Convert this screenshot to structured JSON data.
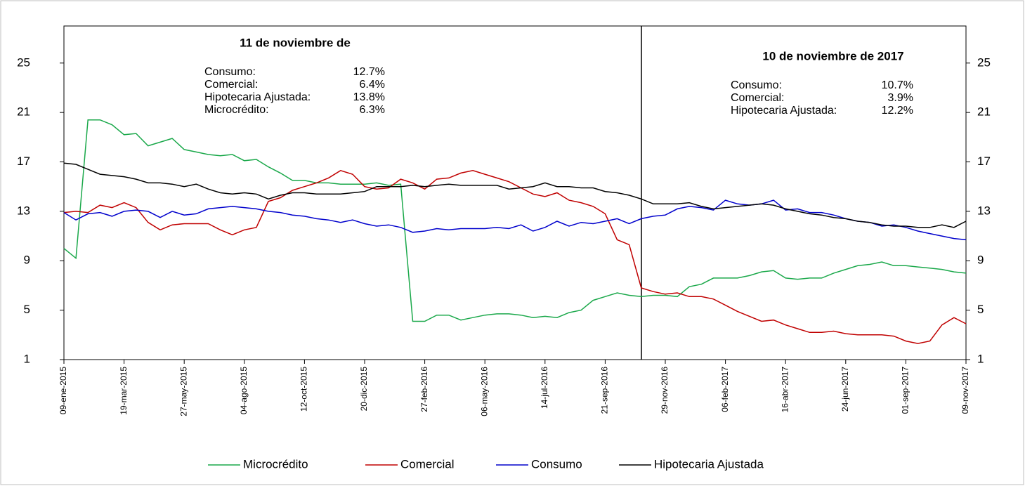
{
  "chart_data": {
    "type": "line",
    "categories": [
      "09-ene-2015",
      null,
      null,
      null,
      null,
      "19-mar-2015",
      null,
      null,
      null,
      null,
      "27-may-2015",
      null,
      null,
      null,
      null,
      "04-ago-2015",
      null,
      null,
      null,
      null,
      "12-oct-2015",
      null,
      null,
      null,
      null,
      "20-dic-2015",
      null,
      null,
      null,
      null,
      "27-feb-2016",
      null,
      null,
      null,
      null,
      "06-may-2016",
      null,
      null,
      null,
      null,
      "14-jul-2016",
      null,
      null,
      null,
      null,
      "21-sep-2016",
      null,
      null,
      null,
      null,
      "29-nov-2016",
      null,
      null,
      null,
      null,
      "06-feb-2017",
      null,
      null,
      null,
      null,
      "16-abr-2017",
      null,
      null,
      null,
      null,
      "24-jun-2017",
      null,
      null,
      null,
      null,
      "01-sep-2017",
      null,
      null,
      null,
      null,
      "09-nov-2017"
    ],
    "series": [
      {
        "name": "Microcrédito",
        "color": "#1aa84a",
        "values": [
          10,
          9.2,
          20.4,
          20.4,
          20,
          19.2,
          19.3,
          18.3,
          18.6,
          18.9,
          18,
          17.8,
          17.6,
          17.5,
          17.6,
          17.1,
          17.2,
          16.6,
          16.1,
          15.5,
          15.5,
          15.3,
          15.3,
          15.2,
          15.2,
          15.2,
          15.3,
          15.1,
          15.2,
          4.1,
          4.1,
          4.6,
          4.6,
          4.2,
          4.4,
          4.6,
          4.7,
          4.7,
          4.6,
          4.4,
          4.5,
          4.4,
          4.8,
          5.0,
          5.8,
          6.1,
          6.4,
          6.2,
          6.1,
          6.2,
          6.2,
          6.1,
          6.9,
          7.1,
          7.6,
          7.6,
          7.6,
          7.8,
          8.1,
          8.2,
          7.6,
          7.5,
          7.6,
          7.6,
          8.0,
          8.3,
          8.6,
          8.7,
          8.9,
          8.6,
          8.6,
          8.5,
          8.4,
          8.3,
          8.1,
          8.0
        ]
      },
      {
        "name": "Comercial",
        "color": "#c00000",
        "values": [
          12.9,
          13.0,
          12.9,
          13.5,
          13.3,
          13.7,
          13.3,
          12.1,
          11.5,
          11.9,
          12.0,
          12.0,
          12.0,
          11.5,
          11.1,
          11.5,
          11.7,
          13.8,
          14.1,
          14.7,
          15.0,
          15.3,
          15.7,
          16.3,
          16.0,
          15.0,
          14.8,
          14.9,
          15.6,
          15.3,
          14.8,
          15.6,
          15.7,
          16.1,
          16.3,
          16.0,
          15.7,
          15.4,
          14.9,
          14.4,
          14.2,
          14.5,
          13.9,
          13.7,
          13.4,
          12.8,
          10.7,
          10.3,
          6.8,
          6.5,
          6.3,
          6.4,
          6.1,
          6.1,
          5.9,
          5.4,
          4.9,
          4.5,
          4.1,
          4.2,
          3.8,
          3.5,
          3.2,
          3.2,
          3.3,
          3.1,
          3.0,
          3.0,
          3.0,
          2.9,
          2.5,
          2.3,
          2.5,
          3.8,
          4.4,
          3.9
        ]
      },
      {
        "name": "Consumo",
        "color": "#0000cc",
        "values": [
          12.9,
          12.3,
          12.8,
          12.9,
          12.6,
          13.0,
          13.1,
          13.0,
          12.5,
          13.0,
          12.7,
          12.8,
          13.2,
          13.3,
          13.4,
          13.3,
          13.2,
          13.0,
          12.9,
          12.7,
          12.6,
          12.4,
          12.3,
          12.1,
          12.3,
          12.0,
          11.8,
          11.9,
          11.7,
          11.3,
          11.4,
          11.6,
          11.5,
          11.6,
          11.6,
          11.6,
          11.7,
          11.6,
          11.9,
          11.4,
          11.7,
          12.2,
          11.8,
          12.1,
          12.0,
          12.2,
          12.4,
          12.0,
          12.4,
          12.6,
          12.7,
          13.2,
          13.4,
          13.3,
          13.1,
          13.9,
          13.6,
          13.5,
          13.6,
          13.9,
          13.1,
          13.2,
          12.9,
          12.9,
          12.7,
          12.4,
          12.2,
          12.1,
          11.8,
          11.9,
          11.7,
          11.4,
          11.2,
          11.0,
          10.8,
          10.7
        ]
      },
      {
        "name": "Hipotecaria Ajustada",
        "color": "#000000",
        "values": [
          16.9,
          16.8,
          16.4,
          16.0,
          15.9,
          15.8,
          15.6,
          15.3,
          15.3,
          15.2,
          15.0,
          15.2,
          14.8,
          14.5,
          14.4,
          14.5,
          14.4,
          14.0,
          14.3,
          14.5,
          14.5,
          14.4,
          14.4,
          14.4,
          14.5,
          14.6,
          15.0,
          15.0,
          15.0,
          15.1,
          15.0,
          15.1,
          15.2,
          15.1,
          15.1,
          15.1,
          15.1,
          14.8,
          14.9,
          15.0,
          15.3,
          15.0,
          15.0,
          14.9,
          14.9,
          14.6,
          14.5,
          14.3,
          14.0,
          13.6,
          13.6,
          13.6,
          13.7,
          13.4,
          13.2,
          13.3,
          13.4,
          13.5,
          13.6,
          13.5,
          13.2,
          13.0,
          12.8,
          12.7,
          12.5,
          12.4,
          12.2,
          12.1,
          11.9,
          11.8,
          11.8,
          11.7,
          11.7,
          11.9,
          11.7,
          12.2
        ]
      }
    ],
    "ylim": [
      1,
      28
    ],
    "yticks": [
      1,
      5,
      9,
      13,
      17,
      21,
      25
    ],
    "y2lim": [
      1,
      28
    ],
    "y2ticks": [
      1,
      5,
      9,
      13,
      17,
      21,
      25
    ],
    "legend": "bottom",
    "annotations": [
      {
        "title": "11 de noviembre de",
        "rows": [
          {
            "label": "Consumo:",
            "value": "12.7%"
          },
          {
            "label": "Comercial:",
            "value": "6.4%"
          },
          {
            "label": "Hipotecaria Ajustada:",
            "value": "13.8%"
          },
          {
            "label": "Microcrédito:",
            "value": "6.3%"
          }
        ]
      },
      {
        "title": "10 de noviembre de 2017",
        "rows": [
          {
            "label": "Consumo:",
            "value": "10.7%"
          },
          {
            "label": "Comercial:",
            "value": "3.9%"
          },
          {
            "label": "Hipotecaria Ajustada:",
            "value": "12.2%"
          }
        ]
      }
    ]
  }
}
